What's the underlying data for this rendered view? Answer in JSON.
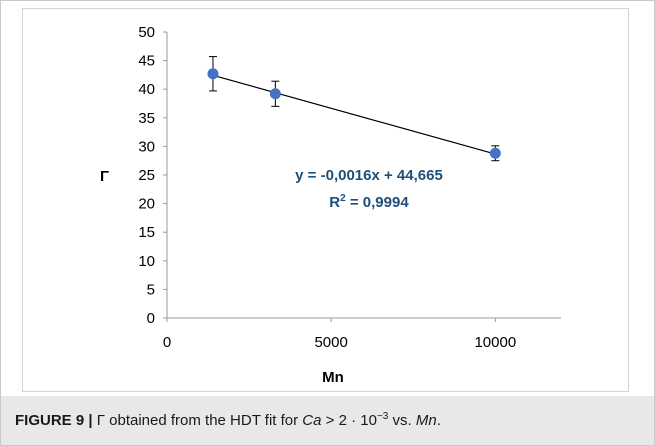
{
  "chart_data": {
    "type": "scatter",
    "xlabel": "Mn",
    "ylabel": "Γ",
    "xlim": [
      0,
      12000
    ],
    "ylim": [
      0,
      50
    ],
    "x_ticks": [
      0,
      5000,
      10000
    ],
    "y_ticks": [
      0,
      5,
      10,
      15,
      20,
      25,
      30,
      35,
      40,
      45,
      50
    ],
    "grid": false,
    "series": [
      {
        "x": [
          1400,
          3300,
          10000
        ],
        "y": [
          42.7,
          39.2,
          28.8
        ],
        "error": [
          3.0,
          2.2,
          1.3
        ],
        "color": "#4472c4"
      }
    ],
    "trendline": {
      "slope": -0.0016,
      "intercept": 44.665,
      "x_range": [
        1400,
        10000
      ],
      "color": "#000000"
    },
    "annotations": {
      "equation": "y = -0,0016x + 44,665",
      "r2_prefix": "R",
      "r2_exp": "2",
      "r2_suffix": " = 0,9994",
      "color": "#1f4e79"
    }
  },
  "caption": {
    "label": "FIGURE 9 |",
    "text_1": " Γ obtained from the HDT fit for ",
    "ca": "Ca",
    "text_2": " > 2 · 10",
    "exp": "−3",
    "text_3": " vs. ",
    "mn": "Mn",
    "text_4": "."
  }
}
